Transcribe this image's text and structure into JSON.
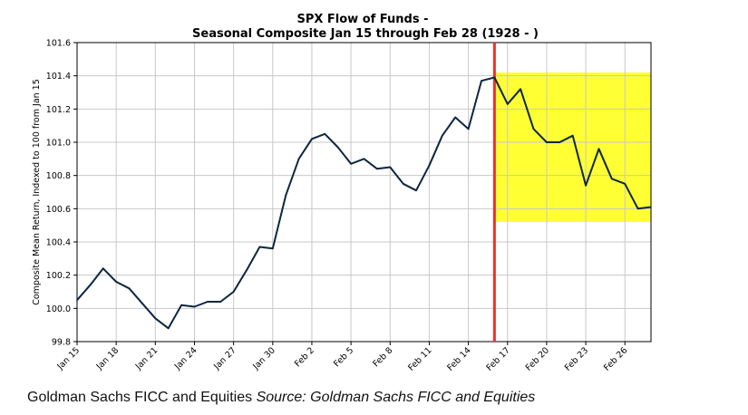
{
  "chart_data": {
    "type": "line",
    "title": "SPX Flow of Funds -",
    "subtitle": "Seasonal Composite Jan 15 through Feb 28 (1928 - )",
    "ylabel": "Composite Mean Return, Indexed to 100 from Jan 15",
    "xlabel": "",
    "ylim": [
      99.8,
      101.6
    ],
    "yticks": [
      "99.8",
      "100.0",
      "100.2",
      "100.4",
      "100.6",
      "100.8",
      "101.0",
      "101.2",
      "101.4",
      "101.6"
    ],
    "xticks": [
      "Jan 15",
      "Jan 18",
      "Jan 21",
      "Jan 24",
      "Jan 27",
      "Jan 30",
      "Feb 2",
      "Feb 5",
      "Feb 8",
      "Feb 11",
      "Feb 14",
      "Feb 17",
      "Feb 20",
      "Feb 23",
      "Feb 26"
    ],
    "grid": true,
    "x": [
      "Jan 15",
      "Jan 16",
      "Jan 17",
      "Jan 18",
      "Jan 19",
      "Jan 20",
      "Jan 21",
      "Jan 22",
      "Jan 23",
      "Jan 24",
      "Jan 25",
      "Jan 26",
      "Jan 27",
      "Jan 28",
      "Jan 29",
      "Jan 30",
      "Jan 31",
      "Feb 1",
      "Feb 2",
      "Feb 3",
      "Feb 4",
      "Feb 5",
      "Feb 6",
      "Feb 7",
      "Feb 8",
      "Feb 9",
      "Feb 10",
      "Feb 11",
      "Feb 12",
      "Feb 13",
      "Feb 14",
      "Feb 15",
      "Feb 16",
      "Feb 17",
      "Feb 18",
      "Feb 19",
      "Feb 20",
      "Feb 21",
      "Feb 22",
      "Feb 23",
      "Feb 24",
      "Feb 25",
      "Feb 26",
      "Feb 27",
      "Feb 28"
    ],
    "values": [
      100.05,
      100.14,
      100.24,
      100.16,
      100.12,
      100.03,
      99.94,
      99.88,
      100.02,
      100.01,
      100.04,
      100.04,
      100.1,
      100.23,
      100.37,
      100.36,
      100.68,
      100.9,
      101.02,
      101.05,
      100.97,
      100.87,
      100.9,
      100.84,
      100.85,
      100.75,
      100.71,
      100.86,
      101.04,
      101.15,
      101.08,
      101.37,
      101.39,
      101.23,
      101.32,
      101.08,
      101.0,
      101.0,
      101.04,
      100.74,
      100.96,
      100.78,
      100.75,
      100.6,
      100.61
    ],
    "line_color": "#0d2640",
    "marker_line": {
      "x": "Feb 16",
      "color": "#e8322b"
    },
    "highlight_band": {
      "x_from": "Feb 16",
      "x_to": "Feb 28",
      "y_from": 100.52,
      "y_to": 101.42,
      "color": "#ffff33"
    }
  },
  "footer": {
    "source_prefix": "Goldman Sachs FICC and Equities",
    "source_italic": "Source: Goldman Sachs FICC and Equities"
  }
}
